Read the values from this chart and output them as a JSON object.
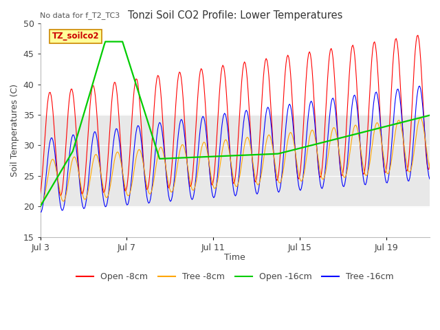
{
  "title": "Tonzi Soil CO2 Profile: Lower Temperatures",
  "subtitle": "No data for f_T2_TC3",
  "ylabel": "Soil Temperatures (C)",
  "xlabel": "Time",
  "ylim": [
    15,
    50
  ],
  "xtick_labels": [
    "Jul 3",
    "Jul 7",
    "Jul 11",
    "Jul 15",
    "Jul 19"
  ],
  "xtick_positions": [
    3,
    7,
    11,
    15,
    19
  ],
  "legend_colors": [
    "#ff0000",
    "#ffa500",
    "#00cc00",
    "#0000ff"
  ],
  "band_color": "#e8e8e8",
  "band_y1": 20,
  "band_y2": 35,
  "watermark_text": "TZ_soilco2",
  "watermark_color": "#cc0000",
  "watermark_bg": "#ffff99",
  "watermark_border": "#cc8800"
}
